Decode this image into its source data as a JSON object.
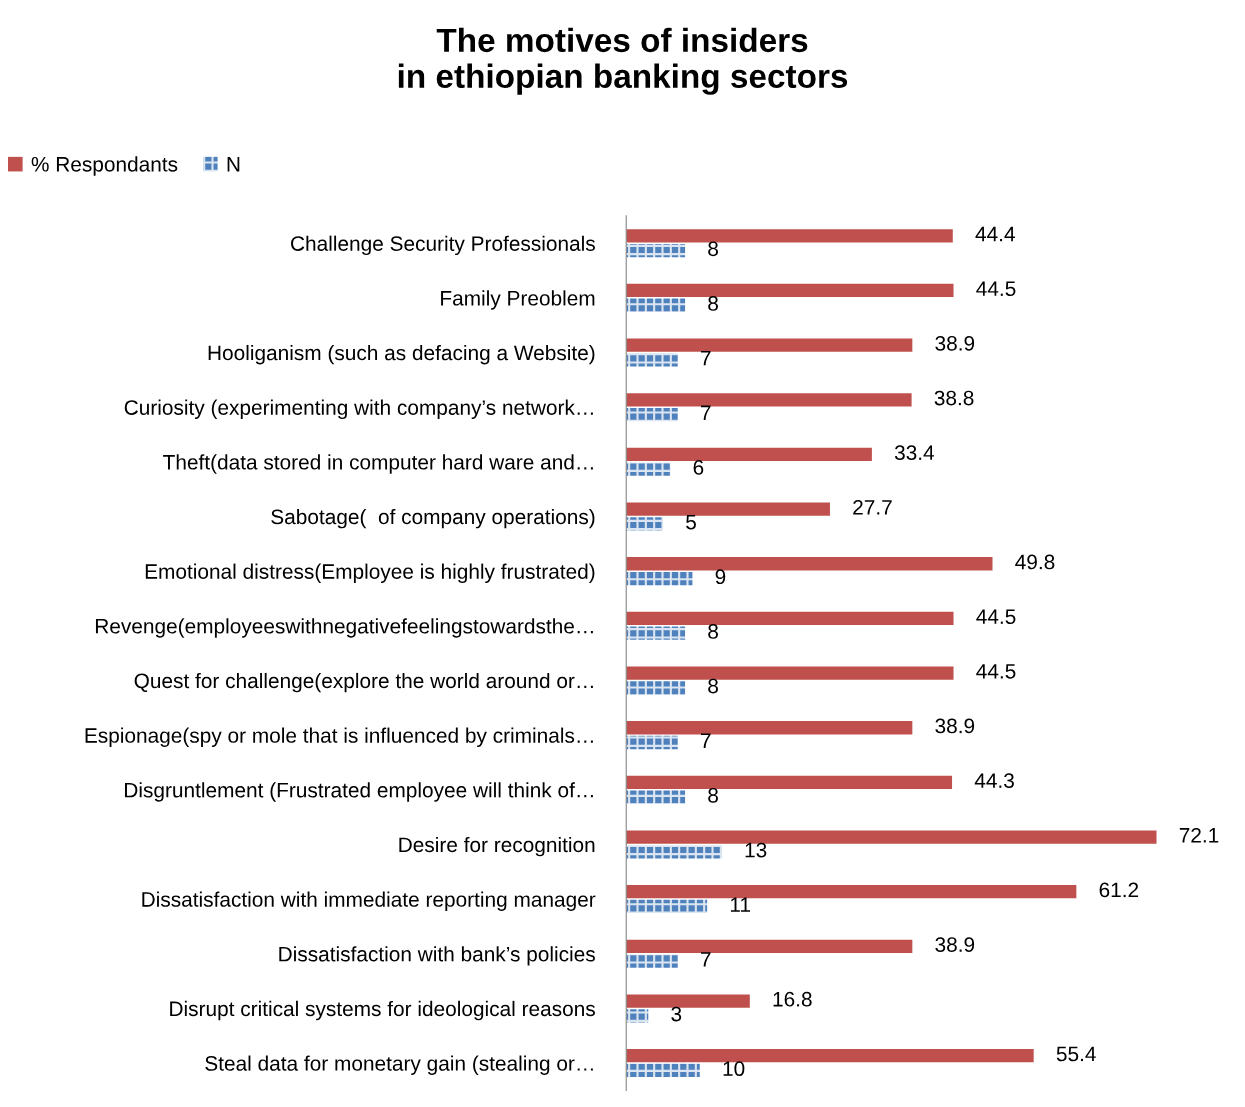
{
  "chart_data": {
    "type": "bar",
    "orientation": "horizontal",
    "title": "The motives of insiders\nin ethiopian banking sectors",
    "categories": [
      "Challenge Security Professionals",
      "Family Preoblem",
      "Hooliganism (such as defacing a Website)",
      "Curiosity (experimenting with company’s network…",
      "Theft(data stored in computer hard ware and…",
      "Sabotage(  of company operations)",
      "Emotional distress(Employee is highly frustrated)",
      "Revenge(employeeswithnegativefeelingstowardsthe…",
      "Quest for challenge(explore the world around or…",
      "Espionage(spy or mole that is influenced by criminals…",
      "Disgruntlement (Frustrated employee will think of…",
      "Desire for recognition",
      "Dissatisfaction with immediate reporting manager",
      "Dissatisfaction with bank’s policies",
      "Disrupt critical systems for ideological reasons",
      "Steal data for monetary gain (stealing or…"
    ],
    "series": [
      {
        "name": "% Respondants",
        "color": "#c0504d",
        "values": [
          44.4,
          44.5,
          38.9,
          38.8,
          33.4,
          27.7,
          49.8,
          44.5,
          44.5,
          38.9,
          44.3,
          72.1,
          61.2,
          38.9,
          16.8,
          55.4
        ]
      },
      {
        "name": "N",
        "color": "#4f81bd",
        "values": [
          8,
          8,
          7,
          7,
          6,
          5,
          9,
          8,
          8,
          7,
          8,
          13,
          11,
          7,
          3,
          10
        ]
      }
    ],
    "data_labels": true,
    "legend": "top",
    "grid": false
  }
}
